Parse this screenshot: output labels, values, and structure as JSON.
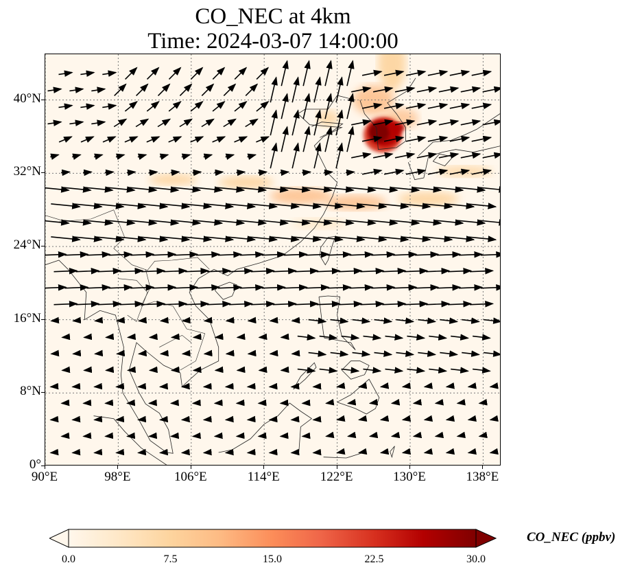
{
  "title": {
    "line1": "CO_NEC at 4km",
    "line2": "Time: 2024-03-07 14:00:00"
  },
  "axes": {
    "lon_ticks": [
      "90°E",
      "98°E",
      "106°E",
      "114°E",
      "122°E",
      "130°E",
      "138°E"
    ],
    "lat_ticks": [
      "40°N",
      "32°N",
      "24°N",
      "16°N",
      "8°N",
      "0°"
    ],
    "lon_range": [
      90,
      140
    ],
    "lat_range": [
      0,
      45
    ],
    "gridlines": "dotted"
  },
  "colorbar": {
    "label": "CO_NEC (ppbv)",
    "ticks": [
      "0.0",
      "7.5",
      "15.0",
      "22.5",
      "30.0"
    ],
    "range": [
      0,
      30
    ],
    "colormap": "OrRd",
    "extend": "both",
    "colors": [
      "#fff7ec",
      "#fee8c8",
      "#fdd49e",
      "#fdbb84",
      "#fc8d59",
      "#ef6548",
      "#d7301f",
      "#b30000",
      "#7f0000"
    ]
  },
  "plume": {
    "peak_region": "Korean Peninsula / Yellow Sea",
    "peak_value_ppbv": 30,
    "band_lat_range": [
      27,
      33
    ]
  }
}
